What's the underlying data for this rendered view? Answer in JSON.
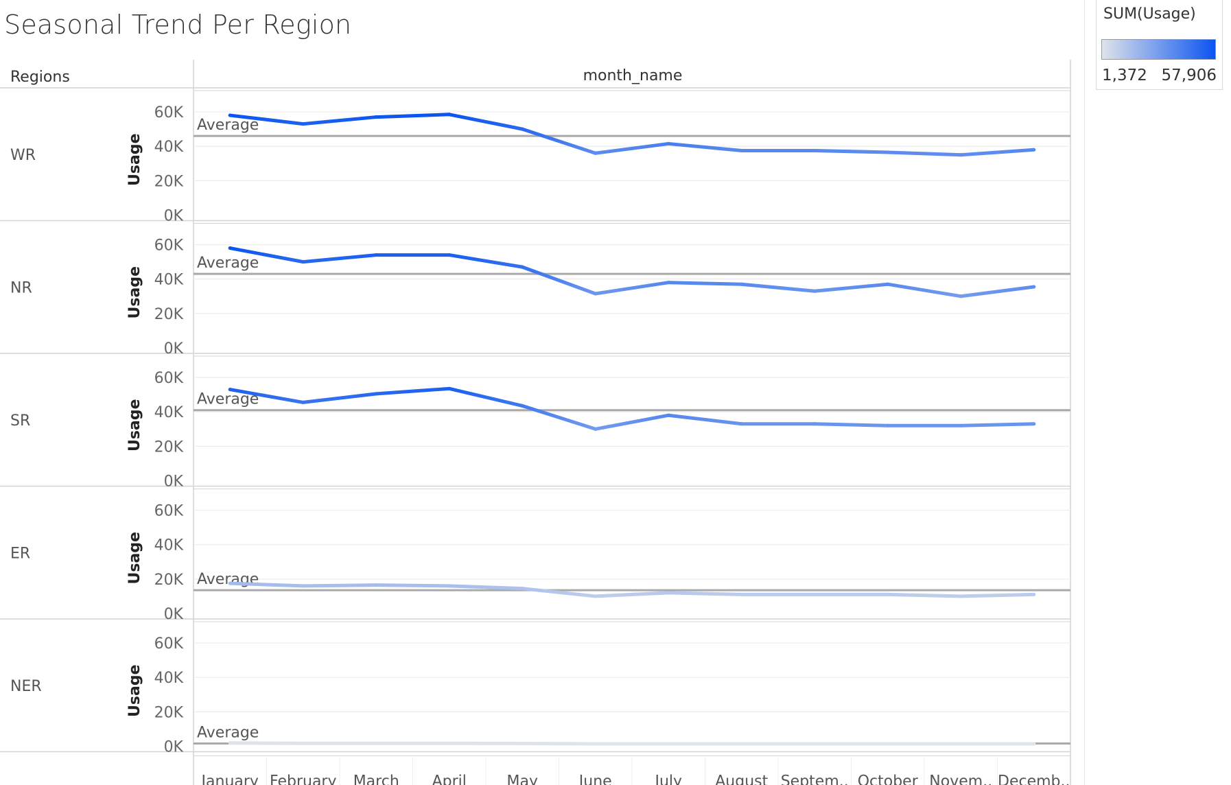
{
  "title": "Seasonal Trend Per Region",
  "legend": {
    "title": "SUM(Usage)",
    "min_label": "1,372",
    "max_label": "57,906",
    "min_value": 1372,
    "max_value": 57906,
    "color_low": "#dfe3ea",
    "color_high": "#0b55f0"
  },
  "colors": {
    "reference_line": "#a9a9a9",
    "gridline": "#ececec",
    "border": "#d4d4d4",
    "axis_text": "#666666"
  },
  "chart_data": {
    "type": "line",
    "title": "Seasonal Trend Per Region",
    "column_header": "month_name",
    "row_header": "Regions",
    "ylabel": "Usage",
    "ylim": [
      0,
      66000
    ],
    "yticks": [
      0,
      20000,
      40000,
      60000
    ],
    "ytick_labels": [
      "0K",
      "20K",
      "40K",
      "60K"
    ],
    "reference_line_label": "Average",
    "categories": [
      "January",
      "February",
      "March",
      "April",
      "May",
      "June",
      "July",
      "August",
      "September",
      "October",
      "November",
      "December"
    ],
    "category_labels": [
      "January",
      "February",
      "March",
      "April",
      "May",
      "June",
      "July",
      "August",
      "Septem..",
      "October",
      "Novem..",
      "Decemb.."
    ],
    "grid": true,
    "legend_position": "top-right",
    "series": [
      {
        "name": "WR",
        "average": 46000,
        "values": [
          58000,
          53000,
          57000,
          58500,
          50000,
          36000,
          41500,
          37500,
          37500,
          36500,
          35000,
          38000
        ]
      },
      {
        "name": "NR",
        "average": 43000,
        "values": [
          58000,
          50000,
          54000,
          54000,
          47000,
          31500,
          38000,
          37000,
          33000,
          37000,
          30000,
          35500
        ]
      },
      {
        "name": "SR",
        "average": 41000,
        "values": [
          53000,
          45500,
          50500,
          53500,
          43500,
          30000,
          38000,
          33000,
          33000,
          32000,
          32000,
          33000
        ]
      },
      {
        "name": "ER",
        "average": 13500,
        "values": [
          17500,
          16000,
          16500,
          16000,
          14500,
          10000,
          12000,
          11000,
          11000,
          11000,
          10000,
          11000
        ]
      },
      {
        "name": "NER",
        "average": 1600,
        "values": [
          1900,
          1700,
          1700,
          1700,
          1600,
          1400,
          1400,
          1400,
          1400,
          1400,
          1372,
          1400
        ]
      }
    ]
  }
}
